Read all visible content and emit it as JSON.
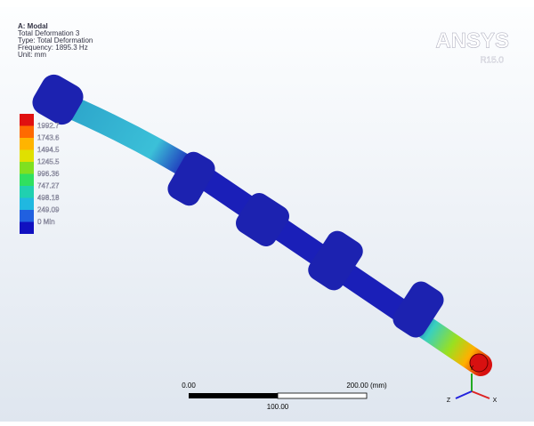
{
  "info": {
    "title": "A: Modal",
    "lines": [
      "Total Deformation 3",
      "Type: Total Deformation",
      "Frequency: 1895.3 Hz",
      "Unit: mm"
    ]
  },
  "legend": {
    "labels": [
      "1992.7",
      "1743.6",
      "1494.5",
      "1245.5",
      "996.36",
      "747.27",
      "498.18",
      "249.09",
      "0 Min"
    ]
  },
  "logo": {
    "name": "ANSYS",
    "version": "R15.0"
  },
  "scale_bar": {
    "start": "0.00",
    "end": "200.00 (mm)",
    "mid": "100.00"
  },
  "triad": [
    "X",
    "Y",
    "Z"
  ]
}
